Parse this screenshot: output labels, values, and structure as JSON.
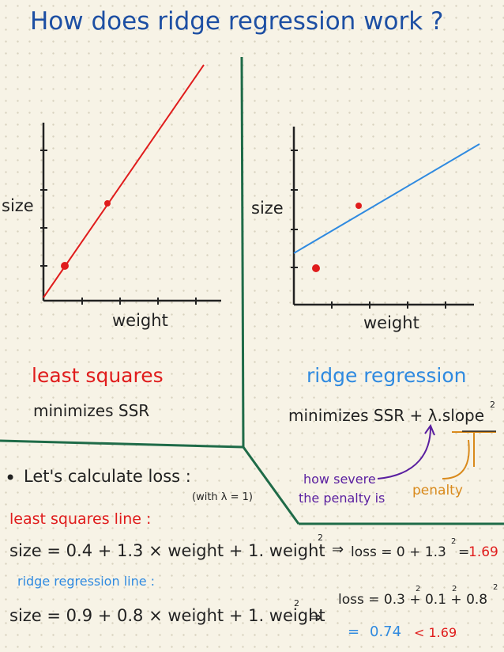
{
  "title": "How does ridge regression work ?",
  "left_panel": {
    "ylabel": "size",
    "xlabel": "weight",
    "heading": "least squares",
    "subheading": "minimizes SSR"
  },
  "right_panel": {
    "ylabel": "size",
    "xlabel": "weight",
    "heading": "ridge regression",
    "subheading": "minimizes SSR + λ.slope",
    "superscript": "2",
    "annotation_severity_line1": "how severe",
    "annotation_severity_line2": "the penalty is",
    "annotation_penalty": "penalty"
  },
  "calc": {
    "bullet": "•",
    "intro": "Let's calculate loss :",
    "lambda_note": "(with λ = 1)",
    "ls_label": "least squares line :",
    "ls_equation": "size = 0.4 + 1.3 × weight + 1. weight",
    "ls_eq_sup": "2",
    "ls_arrow": "⇒",
    "ls_loss_prefix": "loss = 0 + 1.3",
    "ls_loss_sup": "2",
    "ls_loss_eq": "=",
    "ls_loss_value": "1.69",
    "rr_label": "ridge regression line :",
    "rr_equation": "size = 0.9 + 0.8 × weight + 1. weight",
    "rr_eq_sup": "2",
    "rr_arrow": "⇒",
    "rr_loss_text": "loss = 0.3  + 0.1  + 0.8",
    "rr_loss_sup1": "2",
    "rr_loss_sup2": "2",
    "rr_loss_sup3": "2",
    "rr_result_eq": "=",
    "rr_result_value": "0.74",
    "rr_result_compare": "< 1.69"
  },
  "colors": {
    "title": "#1d4fa3",
    "least_squares": "#e01c1c",
    "ridge": "#2f8ae0",
    "divider": "#1f6b48",
    "purple": "#5a1fa0",
    "orange": "#d98a1c"
  }
}
